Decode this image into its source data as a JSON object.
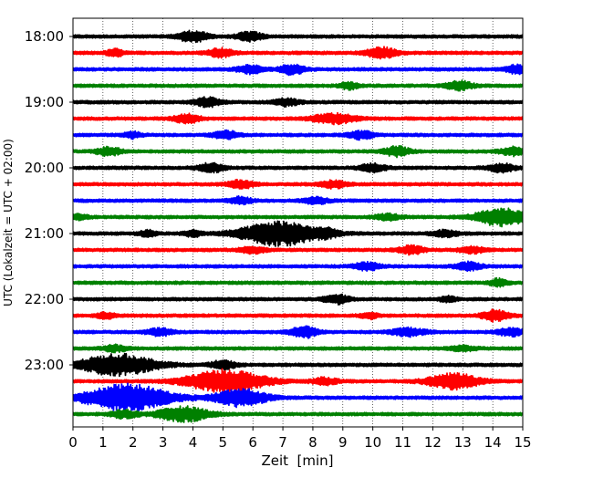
{
  "chart_data": {
    "type": "line",
    "title": "",
    "xlabel": "Zeit  [min]",
    "ylabel": "UTC (Lokalzeit = UTC + 02:00)",
    "xlim": [
      0,
      15
    ],
    "x_ticks": [
      "0",
      "1",
      "2",
      "3",
      "4",
      "5",
      "6",
      "7",
      "8",
      "9",
      "10",
      "11",
      "12",
      "13",
      "14",
      "15"
    ],
    "y_tick_labels": [
      "18:00",
      "19:00",
      "20:00",
      "21:00",
      "22:00",
      "23:00"
    ],
    "grid": "vertical dotted",
    "trace_minutes": 15,
    "trace_colors": [
      "#000000",
      "#ff0000",
      "#0000ff",
      "#008000"
    ],
    "traces": [
      {
        "start": "18:00",
        "events": [
          {
            "t": 4.0,
            "a": 1.1,
            "w": 0.35
          },
          {
            "t": 5.9,
            "a": 0.9,
            "w": 0.3
          }
        ]
      },
      {
        "start": "18:15",
        "events": [
          {
            "t": 1.4,
            "a": 0.7,
            "w": 0.2
          },
          {
            "t": 4.9,
            "a": 0.9,
            "w": 0.3
          },
          {
            "t": 10.3,
            "a": 1.1,
            "w": 0.35
          }
        ]
      },
      {
        "start": "18:30",
        "events": [
          {
            "t": 5.9,
            "a": 0.8,
            "w": 0.3
          },
          {
            "t": 7.3,
            "a": 1.0,
            "w": 0.3
          },
          {
            "t": 14.8,
            "a": 0.8,
            "w": 0.3
          }
        ]
      },
      {
        "start": "18:45",
        "events": [
          {
            "t": 9.2,
            "a": 0.7,
            "w": 0.2
          },
          {
            "t": 12.9,
            "a": 0.9,
            "w": 0.3
          }
        ]
      },
      {
        "start": "19:00",
        "events": [
          {
            "t": 4.5,
            "a": 0.9,
            "w": 0.3
          },
          {
            "t": 7.1,
            "a": 0.7,
            "w": 0.3
          }
        ]
      },
      {
        "start": "19:15",
        "events": [
          {
            "t": 3.8,
            "a": 0.9,
            "w": 0.3
          },
          {
            "t": 8.7,
            "a": 1.0,
            "w": 0.5
          }
        ]
      },
      {
        "start": "19:30",
        "events": [
          {
            "t": 2.0,
            "a": 0.6,
            "w": 0.2
          },
          {
            "t": 5.1,
            "a": 0.8,
            "w": 0.3
          },
          {
            "t": 9.6,
            "a": 0.8,
            "w": 0.3
          }
        ]
      },
      {
        "start": "19:45",
        "events": [
          {
            "t": 1.2,
            "a": 0.8,
            "w": 0.3
          },
          {
            "t": 10.8,
            "a": 1.0,
            "w": 0.3
          },
          {
            "t": 14.7,
            "a": 0.8,
            "w": 0.3
          }
        ]
      },
      {
        "start": "20:00",
        "events": [
          {
            "t": 4.6,
            "a": 0.9,
            "w": 0.3
          },
          {
            "t": 10.0,
            "a": 0.8,
            "w": 0.3
          },
          {
            "t": 14.3,
            "a": 0.8,
            "w": 0.3
          }
        ]
      },
      {
        "start": "20:15",
        "events": [
          {
            "t": 5.6,
            "a": 0.8,
            "w": 0.3
          },
          {
            "t": 8.7,
            "a": 0.7,
            "w": 0.3
          }
        ]
      },
      {
        "start": "20:30",
        "events": [
          {
            "t": 5.6,
            "a": 0.7,
            "w": 0.25
          },
          {
            "t": 8.1,
            "a": 0.6,
            "w": 0.3
          }
        ]
      },
      {
        "start": "20:45",
        "events": [
          {
            "t": 0.2,
            "a": 0.6,
            "w": 0.2
          },
          {
            "t": 10.5,
            "a": 0.6,
            "w": 0.3
          },
          {
            "t": 14.3,
            "a": 1.8,
            "w": 0.6
          }
        ]
      },
      {
        "start": "21:00",
        "events": [
          {
            "t": 2.5,
            "a": 0.6,
            "w": 0.2
          },
          {
            "t": 4.0,
            "a": 0.6,
            "w": 0.2
          },
          {
            "t": 6.9,
            "a": 2.5,
            "w": 0.9
          },
          {
            "t": 8.5,
            "a": 0.6,
            "w": 0.25
          },
          {
            "t": 12.4,
            "a": 0.6,
            "w": 0.3
          }
        ]
      },
      {
        "start": "21:15",
        "events": [
          {
            "t": 6.0,
            "a": 0.6,
            "w": 0.3
          },
          {
            "t": 11.3,
            "a": 0.8,
            "w": 0.3
          },
          {
            "t": 13.3,
            "a": 0.6,
            "w": 0.3
          }
        ]
      },
      {
        "start": "21:30",
        "events": [
          {
            "t": 9.8,
            "a": 0.8,
            "w": 0.3
          },
          {
            "t": 13.2,
            "a": 0.8,
            "w": 0.3
          }
        ]
      },
      {
        "start": "21:45",
        "events": [
          {
            "t": 14.2,
            "a": 0.8,
            "w": 0.2
          }
        ]
      },
      {
        "start": "22:00",
        "events": [
          {
            "t": 8.8,
            "a": 0.9,
            "w": 0.3
          },
          {
            "t": 12.5,
            "a": 0.5,
            "w": 0.2
          }
        ]
      },
      {
        "start": "22:15",
        "events": [
          {
            "t": 1.1,
            "a": 0.6,
            "w": 0.2
          },
          {
            "t": 9.9,
            "a": 0.6,
            "w": 0.2
          },
          {
            "t": 14.1,
            "a": 1.1,
            "w": 0.3
          }
        ]
      },
      {
        "start": "22:30",
        "events": [
          {
            "t": 2.9,
            "a": 0.7,
            "w": 0.3
          },
          {
            "t": 7.7,
            "a": 1.2,
            "w": 0.3
          },
          {
            "t": 11.2,
            "a": 0.8,
            "w": 0.4
          },
          {
            "t": 14.6,
            "a": 0.8,
            "w": 0.3
          }
        ]
      },
      {
        "start": "22:45",
        "events": [
          {
            "t": 1.4,
            "a": 0.6,
            "w": 0.3
          },
          {
            "t": 13.0,
            "a": 0.5,
            "w": 0.3
          }
        ]
      },
      {
        "start": "23:00",
        "events": [
          {
            "t": 1.5,
            "a": 2.2,
            "w": 0.9
          },
          {
            "t": 5.0,
            "a": 0.8,
            "w": 0.3
          }
        ]
      },
      {
        "start": "23:15",
        "events": [
          {
            "t": 5.1,
            "a": 2.4,
            "w": 0.9
          },
          {
            "t": 8.4,
            "a": 0.7,
            "w": 0.3
          },
          {
            "t": 12.7,
            "a": 1.6,
            "w": 0.6
          }
        ]
      },
      {
        "start": "23:30",
        "events": [
          {
            "t": 1.8,
            "a": 2.8,
            "w": 1.0
          },
          {
            "t": 5.6,
            "a": 1.8,
            "w": 0.6
          }
        ]
      },
      {
        "start": "23:45",
        "events": [
          {
            "t": 1.7,
            "a": 0.8,
            "w": 0.3
          },
          {
            "t": 3.7,
            "a": 1.5,
            "w": 0.6
          }
        ]
      }
    ]
  }
}
